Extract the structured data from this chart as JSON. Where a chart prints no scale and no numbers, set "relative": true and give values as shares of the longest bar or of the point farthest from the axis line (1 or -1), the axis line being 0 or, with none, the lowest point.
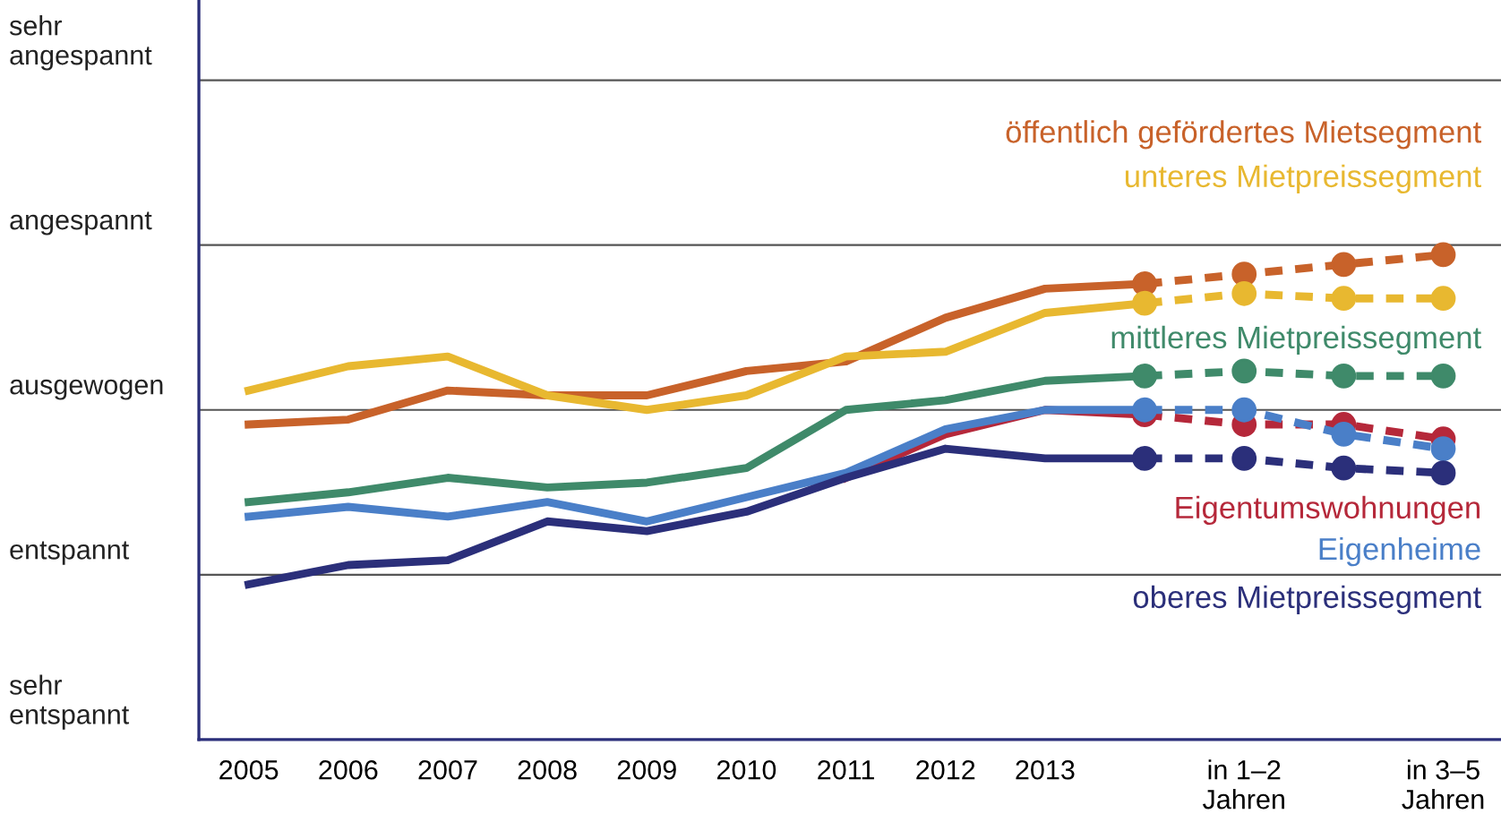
{
  "chart_data": {
    "type": "line",
    "relative": true,
    "categories": [
      "2005",
      "2006",
      "2007",
      "2008",
      "2009",
      "2010",
      "2011",
      "2012",
      "2013",
      null,
      "in 1–2\nJahren",
      null,
      "in 3–5\nJahren"
    ],
    "series": [
      {
        "name": "öffentlich gefördertes Mietsegment",
        "color": "#c8622a",
        "line_style": "solid",
        "marker": "none",
        "values": [
          0.65,
          0.66,
          0.72,
          0.71,
          0.71,
          0.76,
          0.78,
          0.87,
          0.93,
          0.94,
          null,
          null,
          null
        ]
      },
      {
        "color": "#c8622a",
        "line_style": "dashed",
        "marker": "circle",
        "values": [
          null,
          null,
          null,
          null,
          null,
          null,
          null,
          null,
          null,
          0.94,
          0.96,
          0.98,
          1
        ]
      },
      {
        "name": "unteres Mietpreissegment",
        "color": "#e8b830",
        "line_style": "solid",
        "marker": "none",
        "values": [
          0.72,
          0.77,
          0.79,
          0.71,
          0.68,
          0.71,
          0.79,
          0.8,
          0.88,
          0.9,
          null,
          null,
          null
        ]
      },
      {
        "color": "#e8b830",
        "line_style": "dashed",
        "marker": "circle",
        "values": [
          null,
          null,
          null,
          null,
          null,
          null,
          null,
          null,
          null,
          0.9,
          0.92,
          0.91,
          0.91
        ]
      },
      {
        "name": "mittleres Mietpreissegment",
        "color": "#3f8a6a",
        "line_style": "solid",
        "marker": "none",
        "values": [
          0.49,
          0.51,
          0.54,
          0.52,
          0.53,
          0.56,
          0.68,
          0.7,
          0.74,
          0.75,
          null,
          null,
          null
        ]
      },
      {
        "color": "#3f8a6a",
        "line_style": "dashed",
        "marker": "circle",
        "values": [
          null,
          null,
          null,
          null,
          null,
          null,
          null,
          null,
          null,
          0.75,
          0.76,
          0.75,
          0.75
        ]
      },
      {
        "name": "Eigentumswohnungen",
        "color": "#b5283a",
        "line_style": "solid",
        "marker": "none",
        "values": [
          null,
          null,
          null,
          null,
          null,
          null,
          0.54,
          0.63,
          0.68,
          0.67,
          null,
          null,
          null
        ]
      },
      {
        "color": "#b5283a",
        "line_style": "dashed",
        "marker": "circle",
        "values": [
          null,
          null,
          null,
          null,
          null,
          null,
          null,
          null,
          null,
          0.67,
          0.65,
          0.65,
          0.62
        ]
      },
      {
        "name": "Eigenheime",
        "color": "#4a7fc8",
        "line_style": "solid",
        "marker": "none",
        "values": [
          0.46,
          0.48,
          0.46,
          0.49,
          0.45,
          0.5,
          0.55,
          0.64,
          0.68,
          0.68,
          null,
          null,
          null
        ]
      },
      {
        "color": "#4a7fc8",
        "line_style": "dashed",
        "marker": "circle",
        "values": [
          null,
          null,
          null,
          null,
          null,
          null,
          null,
          null,
          null,
          0.68,
          0.68,
          0.63,
          0.6
        ]
      },
      {
        "name": "oberes Mietpreissegment",
        "color": "#2b2f7a",
        "line_style": "solid",
        "marker": "none",
        "values": [
          0.32,
          0.36,
          0.37,
          0.45,
          0.43,
          0.47,
          0.54,
          0.6,
          0.58,
          0.58,
          null,
          null,
          null
        ]
      },
      {
        "color": "#2b2f7a",
        "line_style": "dashed",
        "marker": "circle",
        "values": [
          null,
          null,
          null,
          null,
          null,
          null,
          null,
          null,
          null,
          0.58,
          0.58,
          0.56,
          0.55
        ]
      }
    ],
    "annotations": [
      "sehr\nentspannt"
    ],
    "ref_lines": [
      {
        "axis": "y",
        "value": 0.34,
        "label": "entspannt",
        "color": "#555555"
      },
      {
        "axis": "y",
        "value": 0.68,
        "label": "ausgewogen",
        "color": "#555555"
      },
      {
        "axis": "y",
        "value": 1.02,
        "label": "angespannt",
        "color": "#555555"
      },
      {
        "axis": "y",
        "value": 1.36,
        "label": "sehr\nangespannt",
        "color": "#555555"
      }
    ],
    "legend": false
  }
}
